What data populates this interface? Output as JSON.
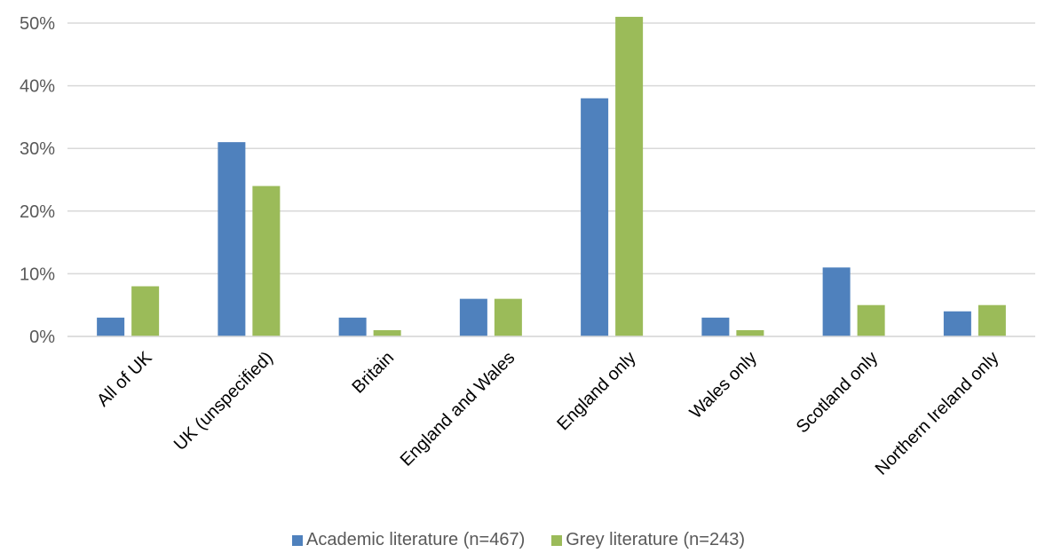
{
  "chart_data": {
    "type": "bar",
    "categories": [
      "All of UK",
      "UK (unspecified)",
      "Britain",
      "England and Wales",
      "England only",
      "Wales only",
      "Scotland only",
      "Northern Ireland only"
    ],
    "series": [
      {
        "name": "Academic literature (n=467)",
        "color": "#4f81bd",
        "values": [
          3,
          31,
          3,
          6,
          38,
          3,
          11,
          4
        ]
      },
      {
        "name": "Grey literature (n=243)",
        "color": "#9bbb59",
        "values": [
          8,
          24,
          1,
          6,
          51,
          1,
          5,
          5
        ]
      }
    ],
    "yticks": [
      "0%",
      "10%",
      "20%",
      "30%",
      "40%",
      "50%"
    ],
    "ylim": [
      0,
      50
    ],
    "grid": true,
    "legend_position": "bottom"
  }
}
